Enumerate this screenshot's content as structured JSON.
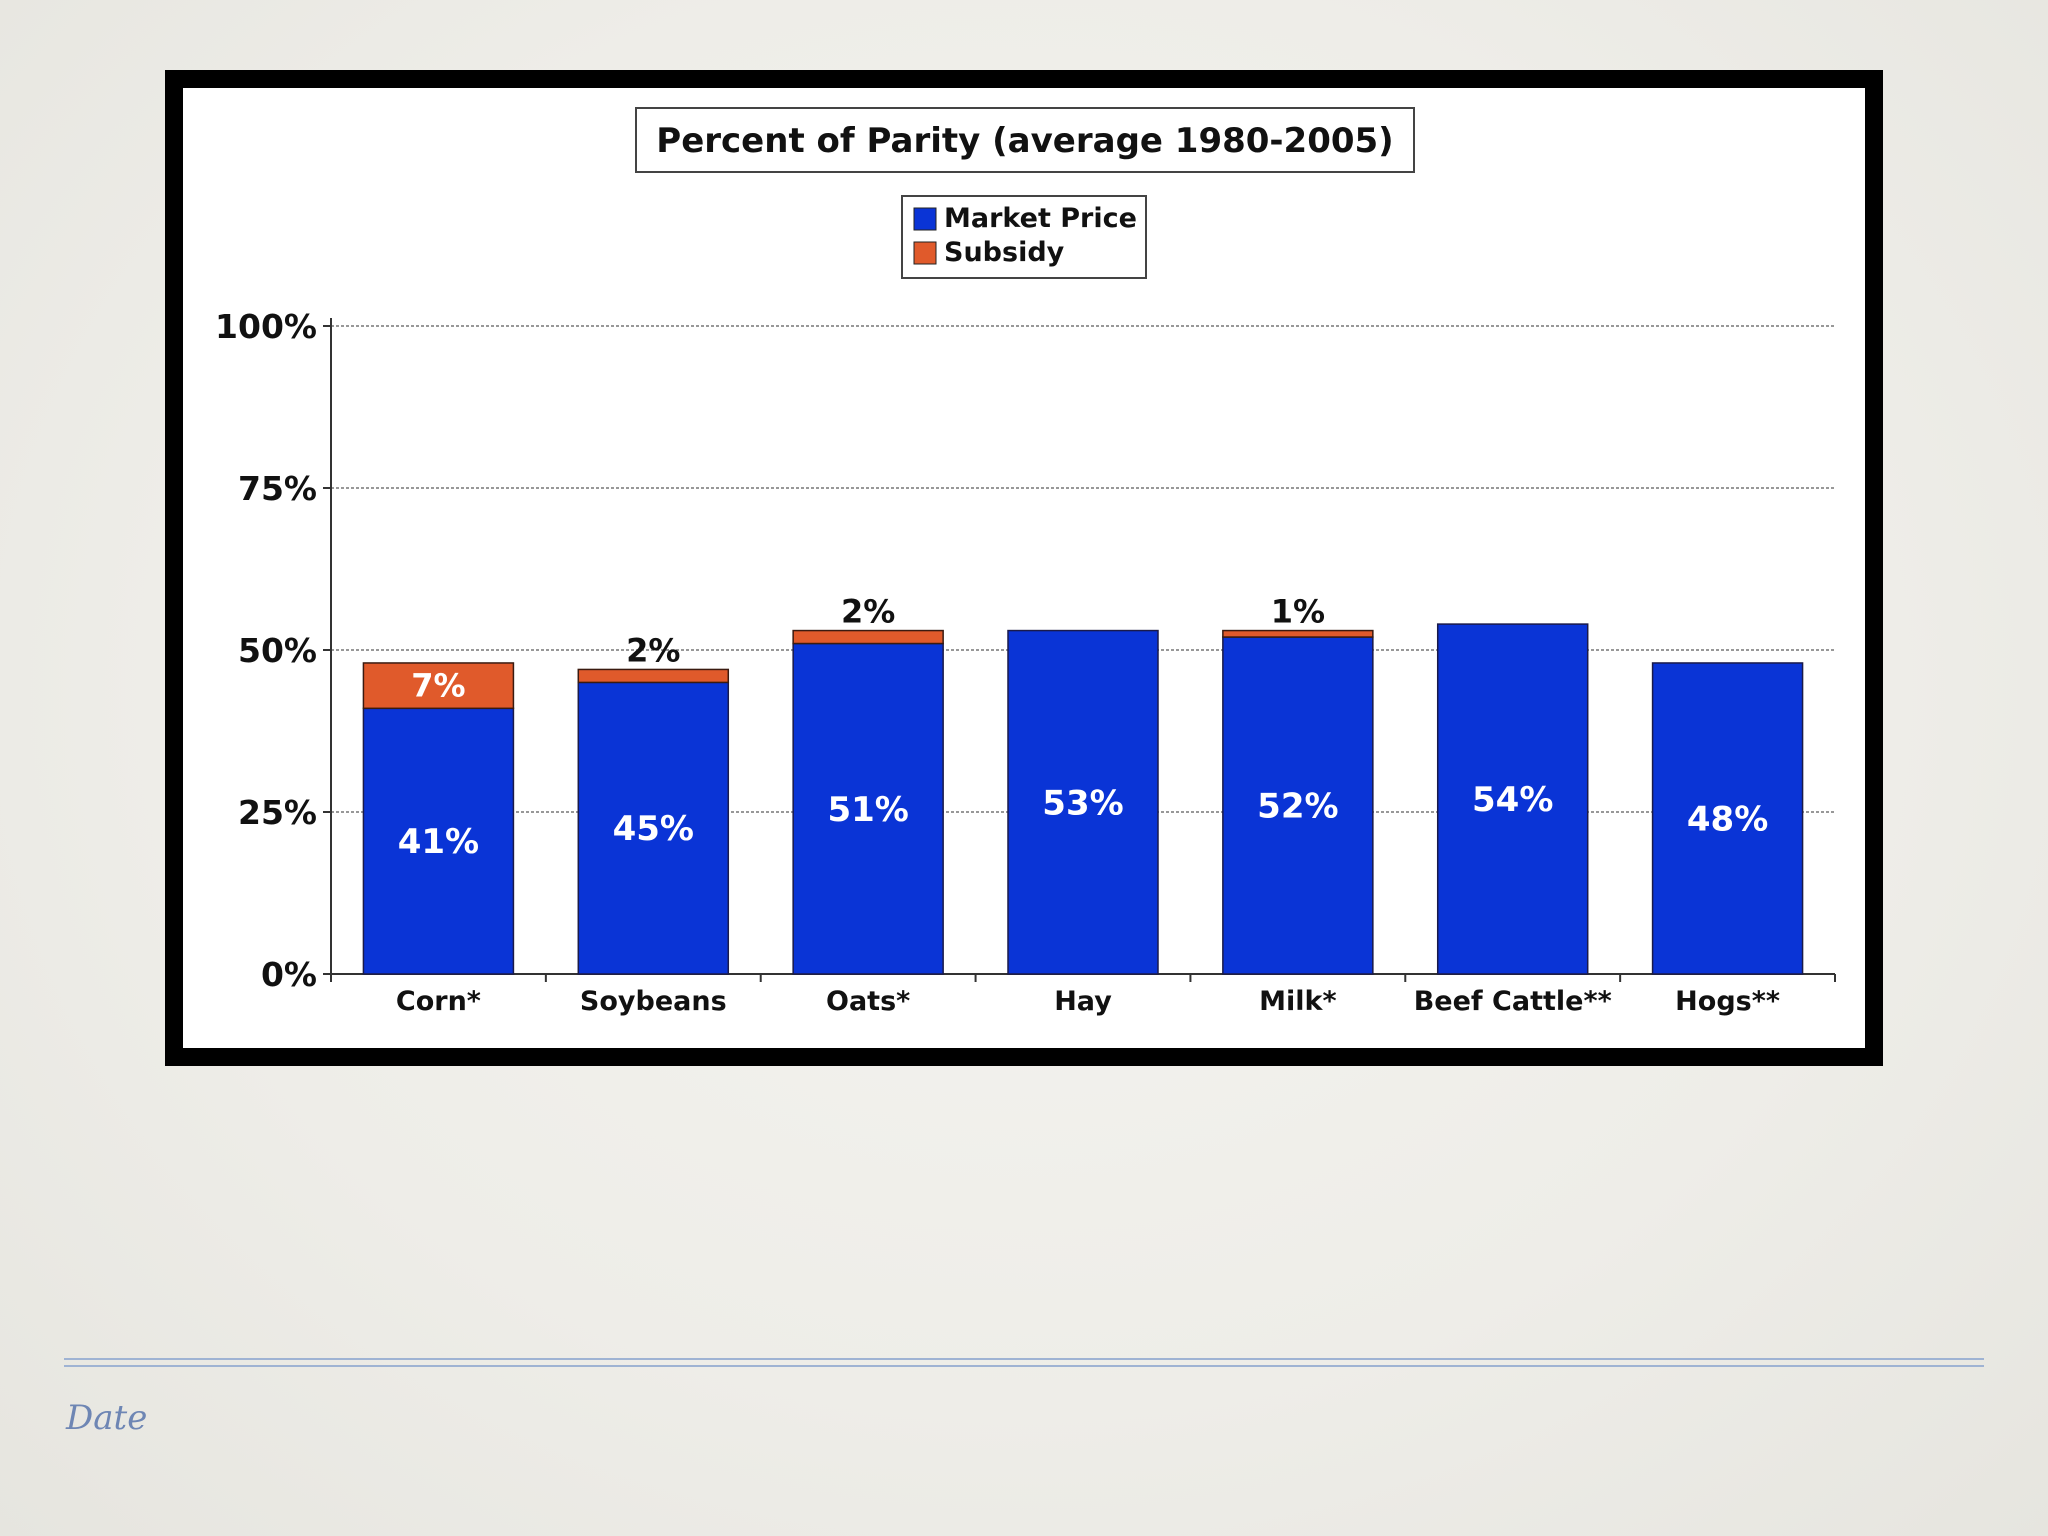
{
  "footer": {
    "date_label": "Date"
  },
  "colors": {
    "market": "#0a34d6",
    "subsidy": "#e05a2b",
    "frame": "#000000"
  },
  "chart_data": {
    "type": "bar",
    "stacked": true,
    "title": "Percent of Parity  (average 1980-2005)",
    "xlabel": "",
    "ylabel": "",
    "ylim": [
      0,
      100
    ],
    "yticks": [
      0,
      25,
      50,
      75,
      100
    ],
    "ytick_labels": [
      "0%",
      "25%",
      "50%",
      "75%",
      "100%"
    ],
    "grid": true,
    "legend_position": "top-center",
    "categories": [
      "Corn*",
      "Soybeans",
      "Oats*",
      "Hay",
      "Milk*",
      "Beef Cattle**",
      "Hogs**"
    ],
    "series": [
      {
        "name": "Market Price",
        "values": [
          41,
          45,
          51,
          53,
          52,
          54,
          48
        ],
        "labels": [
          "41%",
          "45%",
          "51%",
          "53%",
          "52%",
          "54%",
          "48%"
        ]
      },
      {
        "name": "Subsidy",
        "values": [
          7,
          2,
          2,
          0,
          1,
          0,
          0
        ],
        "labels": [
          "7%",
          "2%",
          "2%",
          "",
          "1%",
          "",
          ""
        ]
      }
    ]
  }
}
